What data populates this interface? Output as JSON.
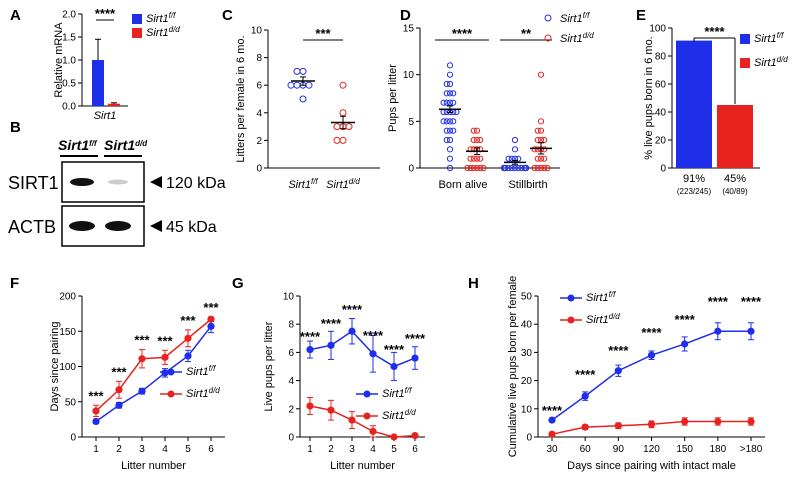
{
  "colors": {
    "ff": "#1f2ee8",
    "dd": "#e8221f"
  },
  "chart_data": [
    {
      "id": "A",
      "type": "bar",
      "panel_label": "A",
      "ylabel": "Relative mRNA",
      "ylim": [
        0,
        2.0
      ],
      "yticks": [
        "0.0",
        "0.5",
        "1.0",
        "1.5",
        "2.0"
      ],
      "xlabel": "Sirt1",
      "series": [
        {
          "name": "Sirt1f/f",
          "value": 1.0,
          "err": 0.45
        },
        {
          "name": "Sirt1d/d",
          "value": 0.05,
          "err": 0.02
        }
      ],
      "significance": "****",
      "legend": [
        {
          "base": "Sirt1",
          "sup": "f/f"
        },
        {
          "base": "Sirt1",
          "sup": "d/d"
        }
      ]
    },
    {
      "id": "B",
      "type": "blot",
      "panel_label": "B",
      "lanes": [
        {
          "base": "Sirt1",
          "sup": "f/f"
        },
        {
          "base": "Sirt1",
          "sup": "d/d"
        }
      ],
      "rows": [
        {
          "protein": "SIRT1",
          "size": "120 kDa"
        },
        {
          "protein": "ACTB",
          "size": "45 kDa"
        }
      ]
    },
    {
      "id": "C",
      "type": "scatter",
      "panel_label": "C",
      "ylabel": "Litters per female in 6 mo.",
      "ylim": [
        0,
        10
      ],
      "yticks": [
        "0",
        "2",
        "4",
        "6",
        "8",
        "10"
      ],
      "categories": [
        {
          "base": "Sirt1",
          "sup": "f/f"
        },
        {
          "base": "Sirt1",
          "sup": "d/d"
        }
      ],
      "points": [
        [
          6,
          7,
          6,
          6,
          7,
          5,
          6
        ],
        [
          6,
          4,
          3,
          3,
          2,
          2,
          3
        ]
      ],
      "means": [
        6.3,
        3.3
      ],
      "sems": [
        0.3,
        0.45
      ],
      "significance": "***"
    },
    {
      "id": "D",
      "type": "scatter",
      "panel_label": "D",
      "ylabel": "Pups per litter",
      "ylim": [
        0,
        15
      ],
      "yticks": [
        "0",
        "5",
        "10",
        "15"
      ],
      "groups": [
        "Born alive",
        "Stillbirth"
      ],
      "points": {
        "born_alive_ff": [
          11,
          10,
          9,
          9,
          8,
          8,
          8,
          7,
          7,
          7,
          7,
          6,
          6,
          6,
          6,
          6,
          5,
          5,
          5,
          5,
          4,
          4,
          4,
          3,
          3,
          2,
          1,
          0
        ],
        "born_alive_dd": [
          4,
          4,
          3,
          3,
          3,
          2,
          2,
          2,
          2,
          1,
          1,
          1,
          1,
          0,
          0,
          0,
          0,
          0,
          0
        ],
        "stillbirth_ff": [
          3,
          2,
          1,
          1,
          1,
          1,
          0,
          0,
          0,
          0,
          0,
          0,
          0,
          0,
          0,
          0,
          0,
          0,
          0,
          0,
          0
        ],
        "stillbirth_dd": [
          10,
          5,
          4,
          4,
          3,
          3,
          3,
          2,
          2,
          2,
          2,
          1,
          1,
          1,
          0,
          0,
          0,
          0,
          0
        ]
      },
      "means": [
        6.3,
        1.8,
        0.6,
        2.1
      ],
      "sems": [
        0.35,
        0.35,
        0.2,
        0.6
      ],
      "significance": [
        "****",
        "**"
      ],
      "legend": [
        {
          "base": "Sirt1",
          "sup": "f/f"
        },
        {
          "base": "Sirt1",
          "sup": "d/d"
        }
      ]
    },
    {
      "id": "E",
      "type": "bar",
      "panel_label": "E",
      "ylabel": "% live pups born in 6 mo.",
      "ylim": [
        0,
        100
      ],
      "yticks": [
        "0",
        "20",
        "40",
        "60",
        "80",
        "100"
      ],
      "values": [
        91,
        45
      ],
      "bar_labels": [
        "91%",
        "45%"
      ],
      "bar_sublabels": [
        "(223/245)",
        "(40/89)"
      ],
      "significance": "****",
      "legend": [
        {
          "base": "Sirt1",
          "sup": "f/f"
        },
        {
          "base": "Sirt1",
          "sup": "d/d"
        }
      ]
    },
    {
      "id": "F",
      "type": "line",
      "panel_label": "F",
      "ylabel": "Days since pairing",
      "xlabel": "Litter number",
      "ylim": [
        0,
        200
      ],
      "yticks": [
        "0",
        "50",
        "100",
        "150",
        "200"
      ],
      "x": [
        "1",
        "2",
        "3",
        "4",
        "5",
        "6"
      ],
      "series": [
        {
          "name": "Sirt1f/f",
          "values": [
            22,
            45,
            65,
            91,
            115,
            157
          ],
          "err": [
            3,
            4,
            4,
            6,
            8,
            9
          ]
        },
        {
          "name": "Sirt1d/d",
          "values": [
            37,
            67,
            111,
            113,
            140,
            167
          ],
          "err": [
            8,
            12,
            13,
            10,
            12,
            3
          ]
        }
      ],
      "significance": [
        "***",
        "***",
        "***",
        "***",
        "***",
        "***"
      ],
      "legend": [
        {
          "base": "Sirt1",
          "sup": "f/f"
        },
        {
          "base": "Sirt1",
          "sup": "d/d"
        }
      ]
    },
    {
      "id": "G",
      "type": "line",
      "panel_label": "G",
      "ylabel": "Live pups per litter",
      "xlabel": "Litter number",
      "ylim": [
        0,
        10
      ],
      "yticks": [
        "0",
        "2",
        "4",
        "6",
        "8",
        "10"
      ],
      "x": [
        "1",
        "2",
        "3",
        "4",
        "5",
        "6"
      ],
      "series": [
        {
          "name": "Sirt1f/f",
          "values": [
            6.2,
            6.5,
            7.5,
            5.9,
            5.0,
            5.6
          ],
          "err": [
            0.6,
            1.0,
            0.9,
            1.3,
            1.0,
            0.8
          ]
        },
        {
          "name": "Sirt1d/d",
          "values": [
            2.2,
            1.9,
            1.2,
            0.4,
            0.0,
            0.1
          ],
          "err": [
            0.6,
            0.7,
            0.6,
            0.4,
            0.0,
            0.1
          ]
        }
      ],
      "significance": [
        "****",
        "****",
        "****",
        "****",
        "****",
        "****"
      ],
      "legend": [
        {
          "base": "Sirt1",
          "sup": "f/f"
        },
        {
          "base": "Sirt1",
          "sup": "d/d"
        }
      ]
    },
    {
      "id": "H",
      "type": "line",
      "panel_label": "H",
      "ylabel": "Cumulative live pups born per female",
      "xlabel": "Days since pairing with intact male",
      "ylim": [
        0,
        50
      ],
      "yticks": [
        "0",
        "10",
        "20",
        "30",
        "40",
        "50"
      ],
      "x": [
        "30",
        "60",
        "90",
        "120",
        "150",
        "180",
        ">180"
      ],
      "series": [
        {
          "name": "Sirt1f/f",
          "values": [
            6,
            14.5,
            23.5,
            29,
            33,
            37.5,
            37.5
          ],
          "err": [
            0.5,
            1.5,
            2,
            1.5,
            2.5,
            3,
            3
          ]
        },
        {
          "name": "Sirt1d/d",
          "values": [
            1,
            3.5,
            4,
            4.5,
            5.5,
            5.5,
            5.5
          ],
          "err": [
            0.3,
            0.8,
            1,
            1.2,
            1.3,
            1.3,
            1.3
          ]
        }
      ],
      "significance": [
        "****",
        "****",
        "****",
        "****",
        "****",
        "****",
        "****"
      ],
      "legend": [
        {
          "base": "Sirt1",
          "sup": "f/f"
        },
        {
          "base": "Sirt1",
          "sup": "d/d"
        }
      ]
    }
  ]
}
